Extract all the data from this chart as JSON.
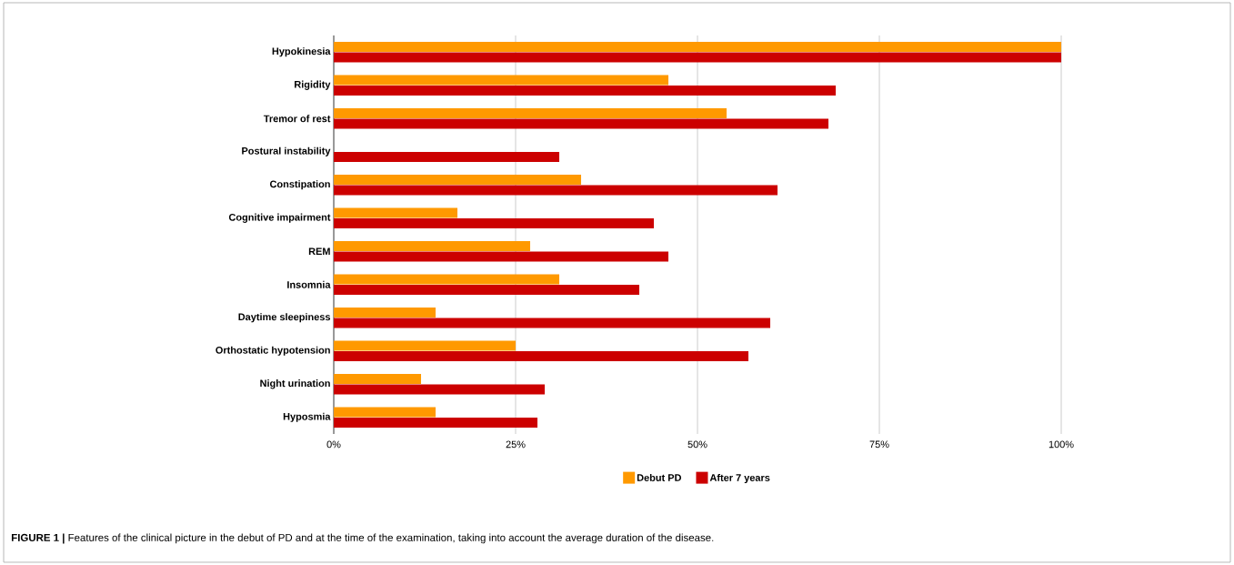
{
  "chart_data": {
    "type": "bar",
    "orientation": "horizontal",
    "categories": [
      "Hypokinesia",
      "Rigidity",
      "Tremor of rest",
      "Postural instability",
      "Constipation",
      "Cognitive impairment",
      "REM",
      "Insomnia",
      "Daytime sleepiness",
      "Orthostatic hypotension",
      "Night urination",
      "Hyposmia"
    ],
    "series": [
      {
        "name": "Debut PD",
        "color": "#ff9900",
        "values": [
          100,
          46,
          54,
          0,
          34,
          17,
          27,
          31,
          14,
          25,
          12,
          14
        ]
      },
      {
        "name": "After 7 years",
        "color": "#cc0000",
        "values": [
          100,
          69,
          68,
          31,
          61,
          44,
          46,
          42,
          60,
          57,
          29,
          28
        ]
      }
    ],
    "xlim": [
      0,
      100
    ],
    "xticks": [
      {
        "value": 0,
        "label": "0%"
      },
      {
        "value": 25,
        "label": "25%"
      },
      {
        "value": 50,
        "label": "50%"
      },
      {
        "value": 75,
        "label": "75%"
      },
      {
        "value": 100,
        "label": "100%"
      }
    ],
    "grid": "x",
    "legend": "bottom",
    "annotations": [
      "**FIGURE 1 |** Features of the clinical picture in the debut of PD and at the time of the examination, taking into account the average duration of the disease."
    ]
  }
}
